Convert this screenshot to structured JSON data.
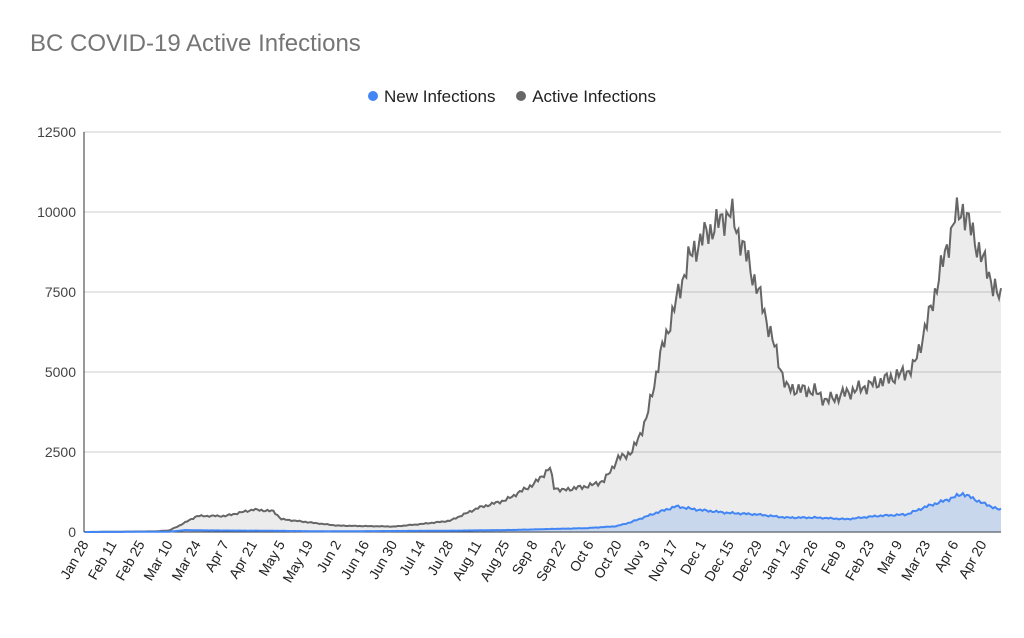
{
  "chart_data": {
    "type": "area",
    "title": "BC COVID-19 Active Infections",
    "xlabel": "",
    "ylabel": "",
    "ylim": [
      0,
      12500
    ],
    "yticks": [
      "0",
      "2500",
      "5000",
      "7500",
      "10000",
      "12500"
    ],
    "ytick_values": [
      0,
      2500,
      5000,
      7500,
      10000,
      12500
    ],
    "x_range_days": [
      0,
      457
    ],
    "xticks": [
      "Jan 28",
      "Feb 11",
      "Feb 25",
      "Mar 10",
      "Mar 24",
      "Apr 7",
      "Apr 21",
      "May 5",
      "May 19",
      "Jun 2",
      "Jun 16",
      "Jun 30",
      "Jul 14",
      "Jul 28",
      "Aug 11",
      "Aug 25",
      "Sep 8",
      "Sep 22",
      "Oct 6",
      "Oct 20",
      "Nov 3",
      "Nov 17",
      "Dec 1",
      "Dec 15",
      "Dec 29",
      "Jan 12",
      "Jan 26",
      "Feb 9",
      "Feb 23",
      "Mar 9",
      "Mar 23",
      "Apr 6",
      "Apr 20"
    ],
    "xtick_interval_days": 14,
    "grid": true,
    "legend": "top-center",
    "series": [
      {
        "name": "New Infections",
        "color": "#4285f4",
        "x": [
          0,
          42,
          50,
          60,
          90,
          120,
          180,
          210,
          230,
          250,
          265,
          272,
          285,
          295,
          305,
          320,
          335,
          350,
          365,
          380,
          395,
          410,
          420,
          430,
          438,
          448,
          456
        ],
        "y": [
          0,
          10,
          60,
          50,
          40,
          20,
          40,
          60,
          90,
          120,
          180,
          300,
          600,
          800,
          700,
          600,
          550,
          450,
          450,
          400,
          500,
          550,
          800,
          1000,
          1200,
          900,
          700
        ]
      },
      {
        "name": "Active Infections",
        "color": "#666666",
        "x": [
          0,
          35,
          42,
          47,
          56,
          70,
          84,
          94,
          98,
          112,
          126,
          154,
          168,
          182,
          196,
          210,
          224,
          232,
          234,
          238,
          252,
          259,
          266,
          273,
          280,
          287,
          294,
          301,
          308,
          315,
          322,
          329,
          336,
          343,
          350,
          364,
          370,
          378,
          392,
          406,
          413,
          420,
          427,
          434,
          438,
          448,
          456
        ],
        "y": [
          0,
          20,
          50,
          200,
          500,
          500,
          700,
          650,
          400,
          300,
          200,
          170,
          250,
          350,
          750,
          1000,
          1500,
          2000,
          1400,
          1300,
          1450,
          1600,
          2300,
          2500,
          3500,
          5500,
          7000,
          8500,
          9200,
          9600,
          10000,
          8800,
          7500,
          6000,
          4500,
          4400,
          4100,
          4300,
          4600,
          4900,
          5100,
          6500,
          8200,
          9800,
          10100,
          8500,
          7300
        ]
      }
    ]
  }
}
